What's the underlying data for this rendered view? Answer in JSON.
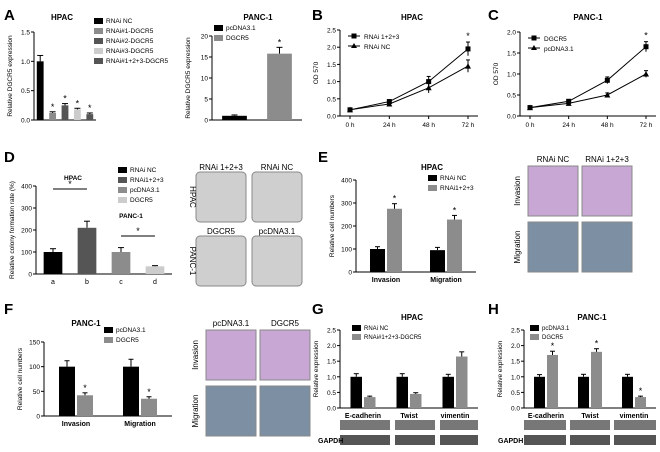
{
  "colors": {
    "black": "#000000",
    "dark_gray": "#555555",
    "mid_gray": "#8c8c8c",
    "light_gray": "#b5b5b5",
    "pale_gray": "#d0d0d0",
    "micro_purple": "#c9a7d4",
    "micro_blue": "#7d8fa3",
    "dish_gray": "#cfcfcf"
  },
  "panels": {
    "A": "A",
    "B": "B",
    "C": "C",
    "D": "D",
    "E": "E",
    "F": "F",
    "G": "G",
    "H": "H"
  },
  "chart_data": [
    {
      "id": "A1",
      "type": "bar",
      "title": "HPAC",
      "ylabel": "Relative DGCR5 expression",
      "ylim": [
        0,
        1.5
      ],
      "yticks": [
        "0.0",
        "0.5",
        "1.0",
        "1.5"
      ],
      "categories": [
        "RNAi NC",
        "RNAi#1-DGCR5",
        "RNAi#2-DGCR5",
        "RNAi#3-DGCR5",
        "RNAi#1+2+3-DGCR5"
      ],
      "values": [
        1.0,
        0.12,
        0.25,
        0.18,
        0.1
      ],
      "errors": [
        0.1,
        0.02,
        0.03,
        0.02,
        0.02
      ],
      "colors": [
        "#000000",
        "#8c8c8c",
        "#555555",
        "#cccccc",
        "#555555"
      ],
      "stars": [
        "",
        "*",
        "*",
        "*",
        "*"
      ],
      "legend": [
        "RNAi NC",
        "RNAi#1-DGCR5",
        "RNAi#2-DGCR5",
        "RNAi#3-DGCR5",
        "RNAi#1+2+3-DGCR5"
      ]
    },
    {
      "id": "A2",
      "type": "bar",
      "title": "PANC-1",
      "ylabel": "Relative DGCR5 expression",
      "ylim": [
        0,
        20
      ],
      "yticks": [
        "0",
        "5",
        "10",
        "15",
        "20"
      ],
      "categories": [
        "pcDNA3.1",
        "DGCR5"
      ],
      "values": [
        1.0,
        15.8
      ],
      "errors": [
        0.2,
        1.5
      ],
      "colors": [
        "#000000",
        "#8c8c8c"
      ],
      "stars": [
        "",
        "*"
      ],
      "legend": [
        "pcDNA3.1",
        "DGCR5"
      ]
    },
    {
      "id": "B",
      "type": "line",
      "title": "HPAC",
      "ylabel": "OD 570",
      "ylim": [
        0,
        2.5
      ],
      "yticks": [
        "0.0",
        "0.5",
        "1.0",
        "1.5",
        "2.0",
        "2.5"
      ],
      "categories": [
        "0 h",
        "24 h",
        "48 h",
        "72 h"
      ],
      "series": [
        {
          "name": "RNAi 1+2+3",
          "values": [
            0.18,
            0.42,
            1.0,
            1.95
          ],
          "errors": [
            0.02,
            0.05,
            0.15,
            0.2
          ],
          "marker": "square"
        },
        {
          "name": "RNAi NC",
          "values": [
            0.18,
            0.35,
            0.82,
            1.45
          ],
          "errors": [
            0.02,
            0.05,
            0.15,
            0.18
          ],
          "marker": "triangle"
        }
      ],
      "stars": [
        "",
        "",
        "",
        "*"
      ]
    },
    {
      "id": "C",
      "type": "line",
      "title": "PANC-1",
      "ylabel": "OD 570",
      "ylim": [
        0,
        2.0
      ],
      "yticks": [
        "0.0",
        "0.5",
        "1.0",
        "1.5",
        "2.0"
      ],
      "categories": [
        "0 h",
        "24 h",
        "48 h",
        "72 h"
      ],
      "series": [
        {
          "name": "DGCR5",
          "values": [
            0.2,
            0.35,
            0.85,
            1.65
          ],
          "errors": [
            0.02,
            0.04,
            0.08,
            0.12
          ],
          "marker": "square"
        },
        {
          "name": "pcDNA3.1",
          "values": [
            0.2,
            0.3,
            0.5,
            1.0
          ],
          "errors": [
            0.02,
            0.03,
            0.05,
            0.08
          ],
          "marker": "triangle"
        }
      ],
      "stars": [
        "",
        "",
        "",
        "*"
      ]
    },
    {
      "id": "D",
      "type": "bar",
      "ylabel": "Relative colony formation rate (%)",
      "ylim": [
        0,
        400
      ],
      "yticks": [
        "0",
        "100",
        "200",
        "300",
        "400"
      ],
      "categories": [
        "a",
        "b",
        "c",
        "d"
      ],
      "values": [
        100,
        210,
        100,
        35
      ],
      "errors": [
        15,
        30,
        20,
        3
      ],
      "colors": [
        "#000000",
        "#555555",
        "#8c8c8c",
        "#cccccc"
      ],
      "legend": [
        "RNAi NC",
        "RNAi1+2+3",
        "pcDNA3.1",
        "DGCR5"
      ],
      "brackets": [
        {
          "label": "HPAC",
          "star": "*"
        },
        {
          "label": "PANC-1",
          "star": "*"
        }
      ]
    },
    {
      "id": "E",
      "type": "bar",
      "title": "HPAC",
      "ylabel": "Relative cell numbers",
      "ylim": [
        0,
        400
      ],
      "yticks": [
        "0",
        "100",
        "200",
        "300",
        "400"
      ],
      "categories": [
        "Invasion",
        "Migration"
      ],
      "series": [
        {
          "name": "RNAi NC",
          "values": [
            100,
            95
          ],
          "errors": [
            10,
            12
          ],
          "color": "#000000"
        },
        {
          "name": "RNAi1+2+3",
          "values": [
            275,
            228
          ],
          "errors": [
            22,
            18
          ],
          "color": "#8c8c8c"
        }
      ],
      "stars": [
        "*",
        "*"
      ]
    },
    {
      "id": "F",
      "type": "bar",
      "title": "PANC-1",
      "ylabel": "Relative cell numbers",
      "ylim": [
        0,
        150
      ],
      "yticks": [
        "0",
        "50",
        "100",
        "150"
      ],
      "categories": [
        "Invasion",
        "Migration"
      ],
      "series": [
        {
          "name": "pcDNA3.1",
          "values": [
            100,
            100
          ],
          "errors": [
            12,
            15
          ],
          "color": "#000000"
        },
        {
          "name": "DGCR5",
          "values": [
            42,
            35
          ],
          "errors": [
            5,
            4
          ],
          "color": "#8c8c8c"
        }
      ],
      "stars": [
        "*",
        "*"
      ]
    },
    {
      "id": "G",
      "type": "bar",
      "title": "HPAC",
      "ylabel": "Relative expression",
      "ylim": [
        0,
        2.5
      ],
      "yticks": [
        "0.0",
        "0.5",
        "1.0",
        "1.5",
        "2.0",
        "2.5"
      ],
      "categories": [
        "E-cadherin",
        "Twist",
        "vimentin"
      ],
      "series": [
        {
          "name": "RNAi NC",
          "values": [
            1.0,
            1.0,
            1.0
          ],
          "errors": [
            0.1,
            0.1,
            0.08
          ],
          "color": "#000000"
        },
        {
          "name": "RNAi#1+2+3-DGCR5",
          "values": [
            0.35,
            0.45,
            1.65
          ],
          "errors": [
            0.03,
            0.04,
            0.15
          ],
          "color": "#8c8c8c"
        }
      ],
      "stars": [
        "",
        "",
        ""
      ],
      "blot_label": "GAPDH"
    },
    {
      "id": "H",
      "type": "bar",
      "title": "PANC-1",
      "ylabel": "Relative expression",
      "ylim": [
        0,
        2.5
      ],
      "yticks": [
        "0.0",
        "0.5",
        "1.0",
        "1.5",
        "2.0",
        "2.5"
      ],
      "categories": [
        "E-cadherin",
        "Twist",
        "vimentin"
      ],
      "series": [
        {
          "name": "pcDNA3.1",
          "values": [
            1.0,
            1.0,
            1.0
          ],
          "errors": [
            0.07,
            0.08,
            0.08
          ],
          "color": "#000000"
        },
        {
          "name": "DGCR5",
          "values": [
            1.7,
            1.8,
            0.35
          ],
          "errors": [
            0.12,
            0.1,
            0.03
          ],
          "color": "#8c8c8c"
        }
      ],
      "stars": [
        "*",
        "*",
        "*"
      ],
      "blot_label": "GAPDH"
    }
  ],
  "images": {
    "D_labels": {
      "top_left": "RNAi 1+2+3",
      "top_right": "RNAi NC",
      "bottom_left": "DGCR5",
      "bottom_right": "pcDNA3.1",
      "row1": "HPAC",
      "row2": "PANC-1"
    },
    "E_labels": {
      "left": "RNAi NC",
      "right": "RNAi 1+2+3",
      "row1": "Invasion",
      "row2": "Migration"
    },
    "F_labels": {
      "left": "pcDNA3.1",
      "right": "DGCR5",
      "row1": "Invasion",
      "row2": "Migration"
    }
  }
}
